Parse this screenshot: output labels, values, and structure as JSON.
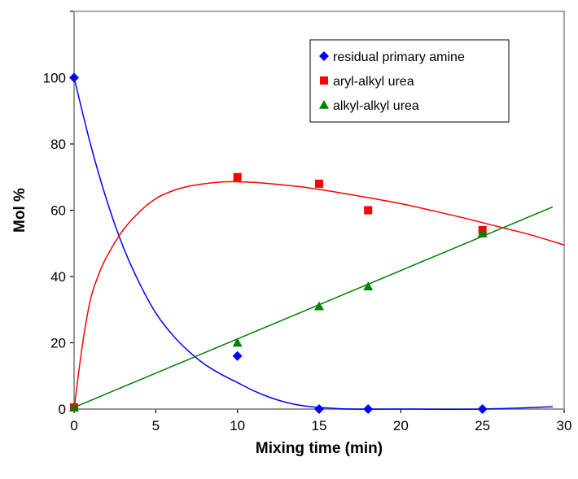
{
  "chart_data": {
    "type": "scatter",
    "title": "",
    "xlabel": "Mixing time (min)",
    "ylabel": "Mol %",
    "xlim": [
      0,
      30
    ],
    "ylim": [
      0,
      120
    ],
    "x_ticks": [
      "0",
      "5",
      "10",
      "15",
      "20",
      "25",
      "30"
    ],
    "y_ticks": [
      "0",
      "20",
      "40",
      "60",
      "80",
      "100"
    ],
    "grid": false,
    "legend_position": "top-right",
    "series": [
      {
        "name": "residual primary amine",
        "marker": "diamond",
        "color": "#0000FF",
        "x": [
          0,
          10,
          15,
          18,
          25
        ],
        "y": [
          100,
          16,
          0,
          0,
          0
        ],
        "fit_curve": {
          "x": [
            0,
            1,
            2,
            3,
            4,
            5,
            6,
            7,
            8,
            9,
            10,
            11,
            12,
            13,
            14,
            15,
            17,
            20,
            25,
            29.3
          ],
          "y": [
            100,
            80,
            63,
            49,
            38,
            29,
            22.5,
            17.5,
            13.5,
            10.5,
            8,
            5.5,
            3.5,
            2,
            1,
            0.5,
            0,
            0,
            0,
            0.7
          ]
        }
      },
      {
        "name": "aryl-alkyl urea",
        "marker": "square",
        "color": "#FF0000",
        "x": [
          0,
          10,
          15,
          18,
          25
        ],
        "y": [
          0.5,
          70,
          68,
          60,
          54
        ],
        "fit_curve": {
          "x": [
            0,
            0.5,
            1,
            1.5,
            2,
            3,
            4,
            5,
            6,
            7,
            8,
            9,
            10,
            11,
            12,
            14,
            16,
            18,
            20,
            22,
            24,
            26,
            28,
            30
          ],
          "y": [
            0,
            19,
            33,
            40.5,
            46,
            54,
            59.5,
            63.5,
            65.8,
            67.2,
            68,
            68.5,
            68.6,
            68.4,
            68,
            67,
            65.5,
            63.8,
            62,
            59.8,
            57.5,
            55,
            52.5,
            49.5
          ]
        }
      },
      {
        "name": "alkyl-alkyl urea",
        "marker": "triangle",
        "color": "#008000",
        "x": [
          0,
          10,
          15,
          18,
          25
        ],
        "y": [
          0.5,
          20,
          31,
          37,
          53
        ],
        "fit_curve": {
          "x": [
            0,
            29.3
          ],
          "y": [
            0.5,
            61
          ]
        }
      }
    ]
  }
}
